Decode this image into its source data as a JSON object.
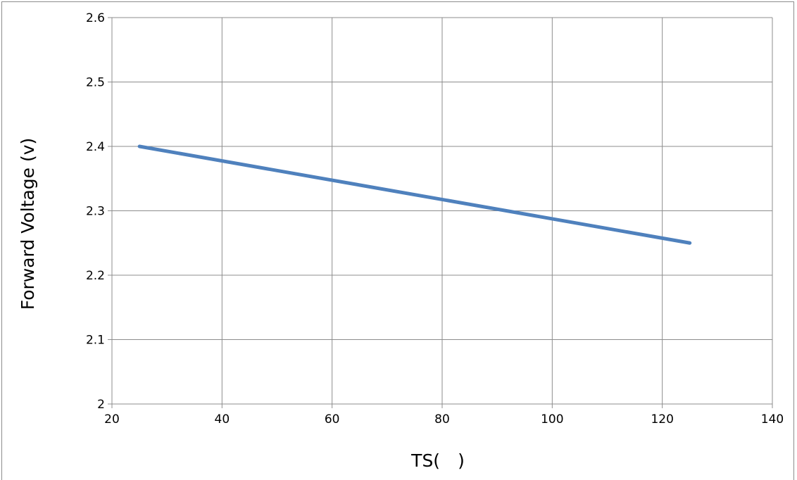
{
  "chart_data": {
    "type": "line",
    "title": "",
    "xlabel": "TS(　)",
    "ylabel": "Forward Voltage (v)",
    "xlim": [
      20,
      140
    ],
    "ylim": [
      2,
      2.6
    ],
    "x_ticks": [
      "20",
      "40",
      "60",
      "80",
      "100",
      "120",
      "140"
    ],
    "y_ticks": [
      "2",
      "2.1",
      "2.2",
      "2.3",
      "2.4",
      "2.5",
      "2.6"
    ],
    "x_tick_values": [
      20,
      40,
      60,
      80,
      100,
      120,
      140
    ],
    "y_tick_values": [
      2,
      2.1,
      2.2,
      2.3,
      2.4,
      2.5,
      2.6
    ],
    "grid": true,
    "legend": "none",
    "series": [
      {
        "color": "#4f81bd",
        "x": [
          25,
          125
        ],
        "y": [
          2.4,
          2.25
        ]
      }
    ]
  }
}
